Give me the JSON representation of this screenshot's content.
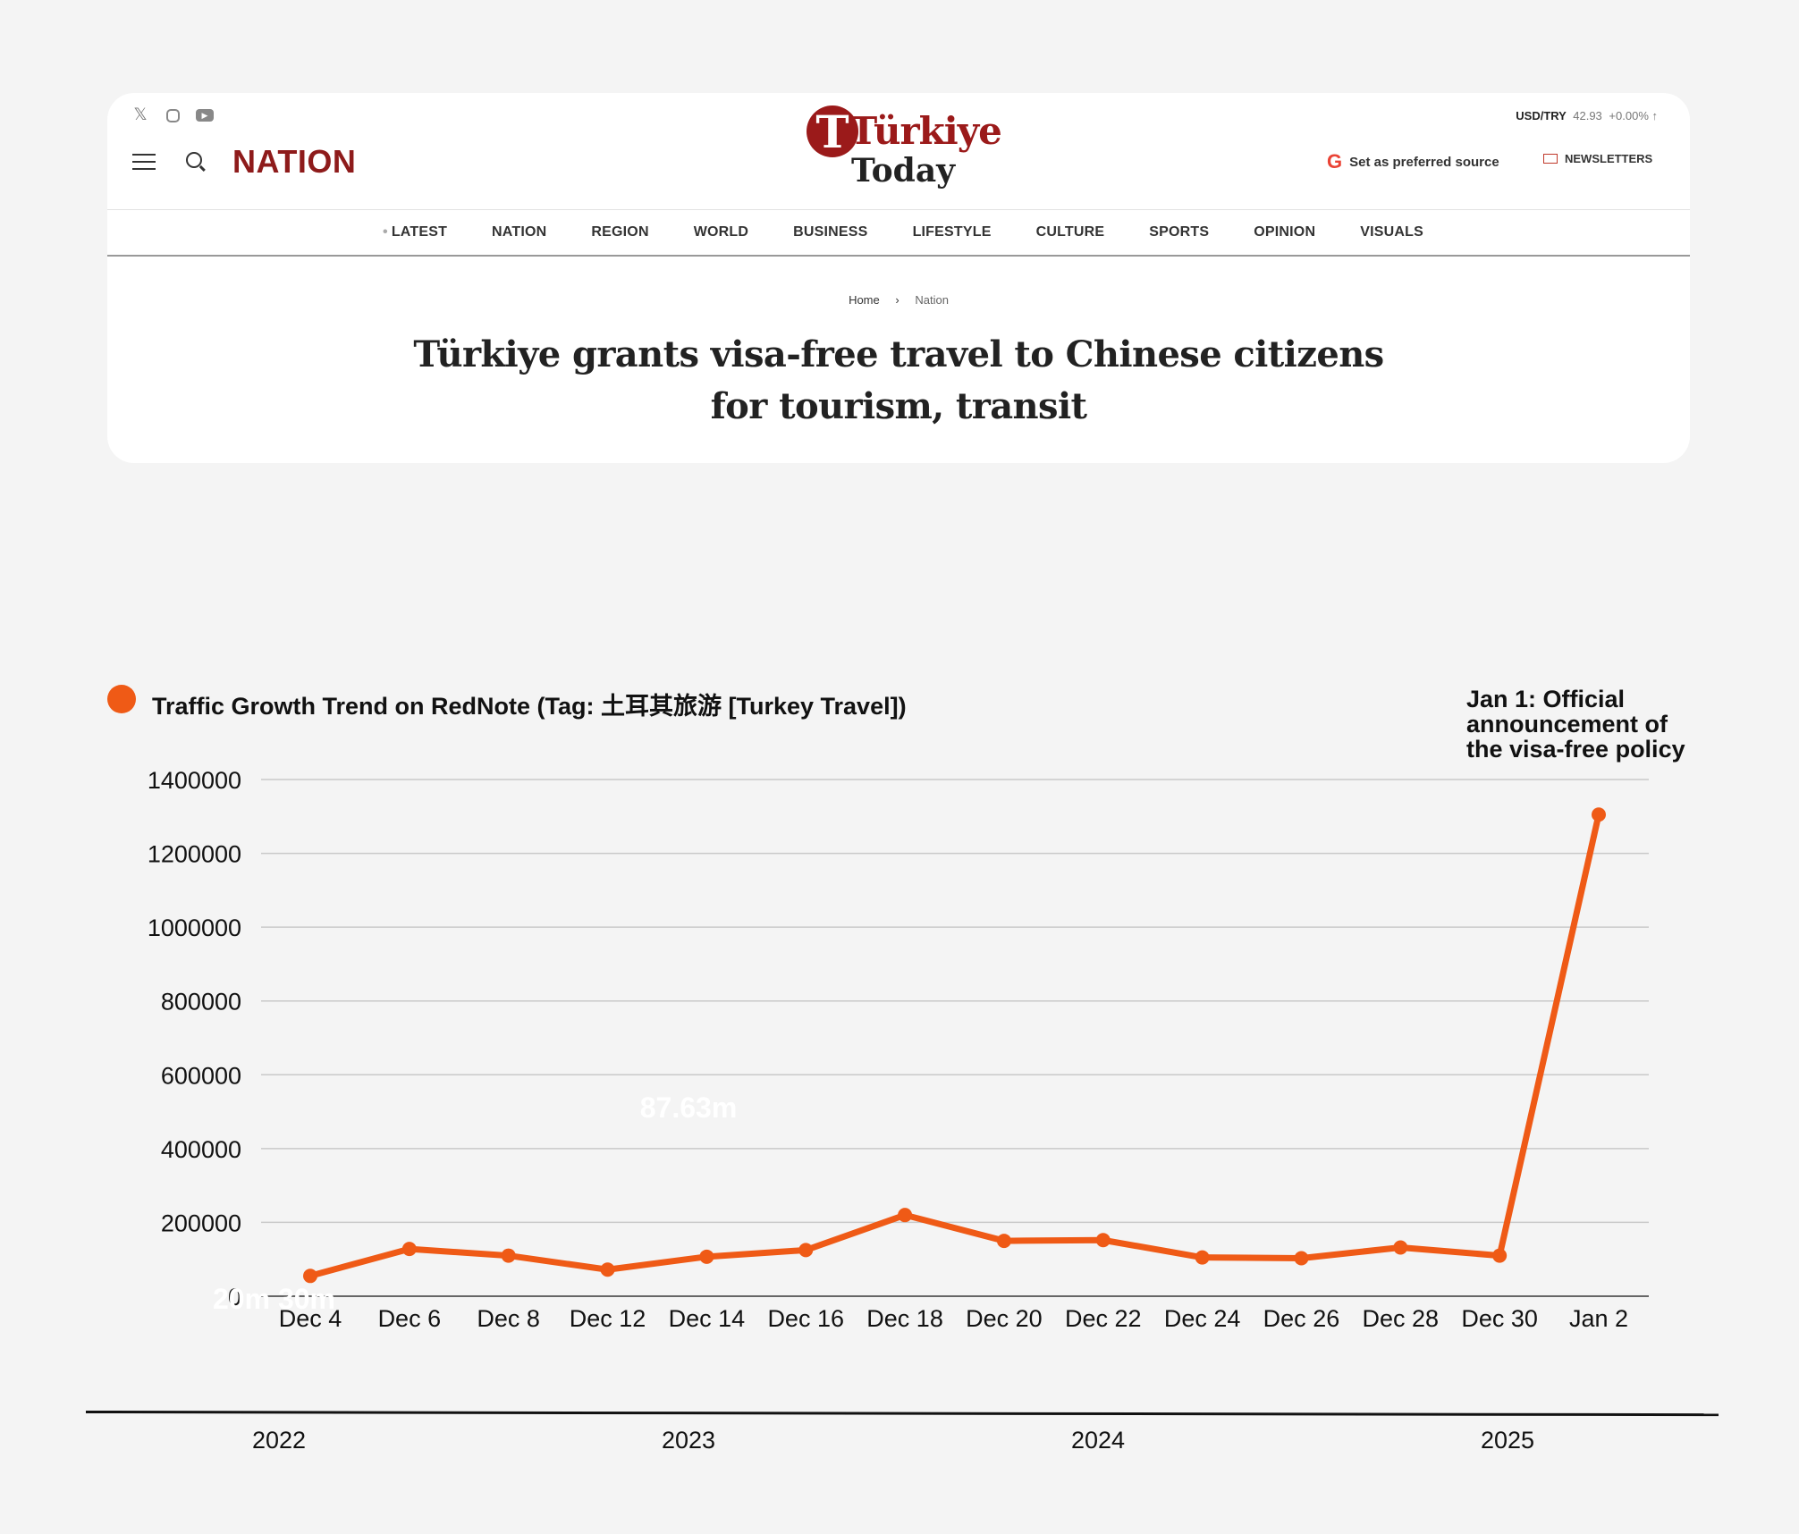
{
  "header": {
    "social_icons": [
      "x-icon",
      "instagram-icon",
      "youtube-icon"
    ],
    "section": "NATION",
    "logo": {
      "line1": "Türkiye",
      "line2": "Today"
    },
    "currency": {
      "pair": "USD/TRY",
      "value": "42.93",
      "change": "+0.00% ↑"
    },
    "preferred_source": "Set as preferred source",
    "newsletters": "NEWSLETTERS",
    "nav": [
      "LATEST",
      "NATION",
      "REGION",
      "WORLD",
      "BUSINESS",
      "LIFESTYLE",
      "CULTURE",
      "SPORTS",
      "OPINION",
      "VISUALS"
    ],
    "breadcrumb": {
      "home": "Home",
      "current": "Nation"
    },
    "headline_line1": "Türkiye grants visa-free travel to Chinese citizens",
    "headline_line2": "for tourism, transit"
  },
  "chart_data": {
    "type": "line",
    "title": "Traffic Growth Trend on RedNote (Tag: 土耳其旅游 [Turkey Travel])",
    "xlabel": "",
    "ylabel": "",
    "categories": [
      "Dec 4",
      "Dec 6",
      "Dec 8",
      "Dec 12",
      "Dec 14",
      "Dec 16",
      "Dec 18",
      "Dec 20",
      "Dec 22",
      "Dec 24",
      "Dec 26",
      "Dec 28",
      "Dec 30",
      "Jan 2"
    ],
    "series": [
      {
        "values": [
          55000,
          128000,
          110000,
          72000,
          107000,
          125000,
          220000,
          150000,
          152000,
          105000,
          103000,
          132000,
          110000,
          1305000
        ]
      }
    ],
    "ylim": [
      0,
      1400000
    ],
    "yticks": [
      0,
      200000,
      400000,
      600000,
      800000,
      1000000,
      1200000,
      1400000
    ],
    "grid": true,
    "line_color": "#ef5a16",
    "annotation_lines": [
      "Jan 1: Official",
      "announcement of",
      "the visa-free policy"
    ],
    "overlay_labels": [
      "87.63m",
      "20m 30m"
    ],
    "years": [
      "2022",
      "2023",
      "2024",
      "2025"
    ]
  }
}
